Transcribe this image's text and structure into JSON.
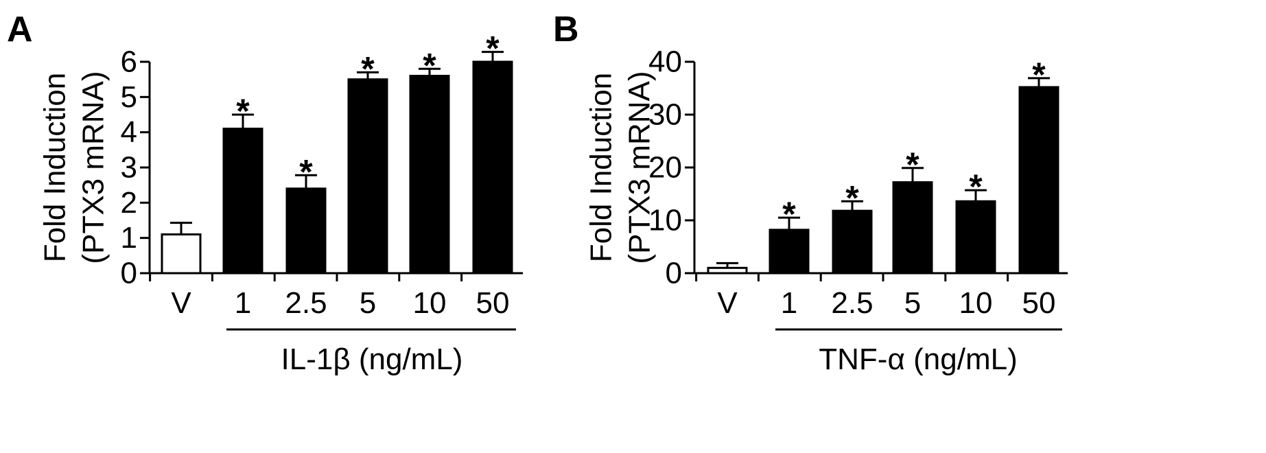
{
  "chart_data": [
    {
      "type": "bar",
      "panel": "A",
      "ylabel_lines": [
        "Fold Induction",
        "(PTX3 mRNA)"
      ],
      "group_label": "IL-1β (ng/mL)",
      "categories": [
        "V",
        "1",
        "2.5",
        "5",
        "10",
        "50"
      ],
      "values": [
        1.1,
        4.1,
        2.4,
        5.5,
        5.6,
        6.0
      ],
      "errors": [
        0.33,
        0.4,
        0.38,
        0.2,
        0.2,
        0.28
      ],
      "significant": [
        false,
        true,
        true,
        true,
        true,
        true
      ],
      "significance_marker": "*",
      "bar_colors": [
        "#ffffff",
        "#000000",
        "#000000",
        "#000000",
        "#000000",
        "#000000"
      ],
      "ylim": [
        0,
        6
      ],
      "yticks": [
        0,
        1,
        2,
        3,
        4,
        5,
        6
      ],
      "grid": false
    },
    {
      "type": "bar",
      "panel": "B",
      "ylabel_lines": [
        "Fold Induction",
        "(PTX3 mRNA)"
      ],
      "group_label": "TNF-α (ng/mL)",
      "categories": [
        "V",
        "1",
        "2.5",
        "5",
        "10",
        "50"
      ],
      "values": [
        1.0,
        8.2,
        11.8,
        17.2,
        13.6,
        35.2
      ],
      "errors": [
        0.9,
        2.3,
        1.8,
        2.7,
        2.1,
        1.7
      ],
      "significant": [
        false,
        true,
        true,
        true,
        true,
        true
      ],
      "significance_marker": "*",
      "bar_colors": [
        "#ffffff",
        "#000000",
        "#000000",
        "#000000",
        "#000000",
        "#000000"
      ],
      "ylim": [
        0,
        40
      ],
      "yticks": [
        0,
        10,
        20,
        30,
        40
      ],
      "grid": false
    }
  ]
}
